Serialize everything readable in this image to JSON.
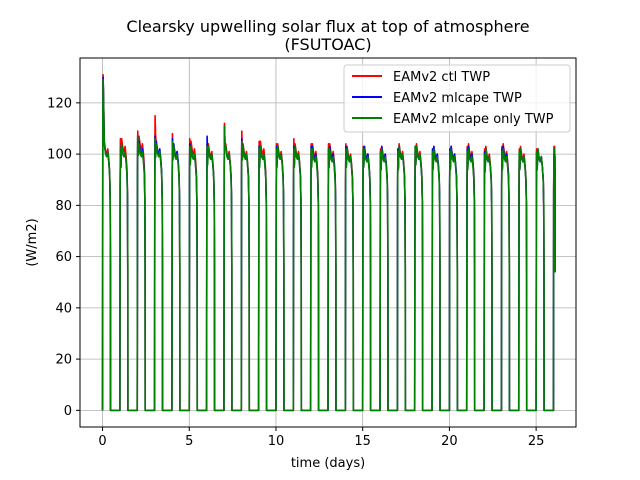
{
  "chart_data": {
    "type": "line",
    "title": "Clearsky upwelling solar flux at top of atmosphere",
    "subtitle": "(FSUTOAC)",
    "xlabel": "time (days)",
    "ylabel": "(W/m2)",
    "xlim": [
      -1.3,
      27.3
    ],
    "ylim": [
      -6.5,
      137.5
    ],
    "xticks": [
      0,
      5,
      10,
      15,
      20,
      25
    ],
    "yticks": [
      0,
      20,
      40,
      60,
      80,
      100,
      120
    ],
    "grid": true,
    "legend_position": "top-right",
    "day_on_fraction": 0.46,
    "series": [
      {
        "name": "EAMv2 ctl TWP",
        "color": "#ff0000",
        "peaks": [
          131,
          106,
          109,
          115,
          108,
          106,
          104,
          112,
          109,
          105,
          104,
          106,
          104,
          104,
          104,
          103,
          102,
          102,
          103,
          102,
          102,
          103,
          102,
          103,
          102,
          102,
          103
        ],
        "troughs": [
          101,
          102,
          103,
          100,
          100,
          101,
          100,
          100,
          100,
          101,
          100,
          100,
          100,
          100,
          99,
          99,
          99,
          100,
          100,
          99,
          99,
          100,
          99,
          100,
          99,
          98,
          99
        ]
      },
      {
        "name": "EAMv2 mlcape TWP",
        "color": "#0000ff",
        "peaks": [
          130,
          102,
          107,
          107,
          106,
          104,
          107,
          111,
          106,
          103,
          103,
          103,
          103,
          102,
          103,
          102,
          101,
          102,
          103,
          102,
          102,
          102,
          101,
          102,
          101,
          101,
          100
        ],
        "troughs": [
          100,
          100,
          101,
          101,
          100,
          99,
          99,
          99,
          99,
          99,
          99,
          99,
          99,
          99,
          98,
          99,
          99,
          99,
          99,
          99,
          99,
          99,
          98,
          99,
          98,
          98,
          98
        ]
      },
      {
        "name": "EAMv2 mlcape only TWP",
        "color": "#008000",
        "peaks": [
          129,
          102,
          107,
          106,
          105,
          103,
          103,
          111,
          105,
          102,
          102,
          102,
          102,
          102,
          102,
          102,
          101,
          101,
          103,
          101,
          101,
          101,
          100,
          101,
          101,
          101,
          100
        ],
        "troughs": [
          100,
          100,
          100,
          100,
          99,
          99,
          99,
          99,
          99,
          99,
          99,
          99,
          98,
          98,
          98,
          98,
          98,
          99,
          99,
          98,
          98,
          98,
          98,
          98,
          98,
          98,
          98
        ]
      }
    ]
  }
}
